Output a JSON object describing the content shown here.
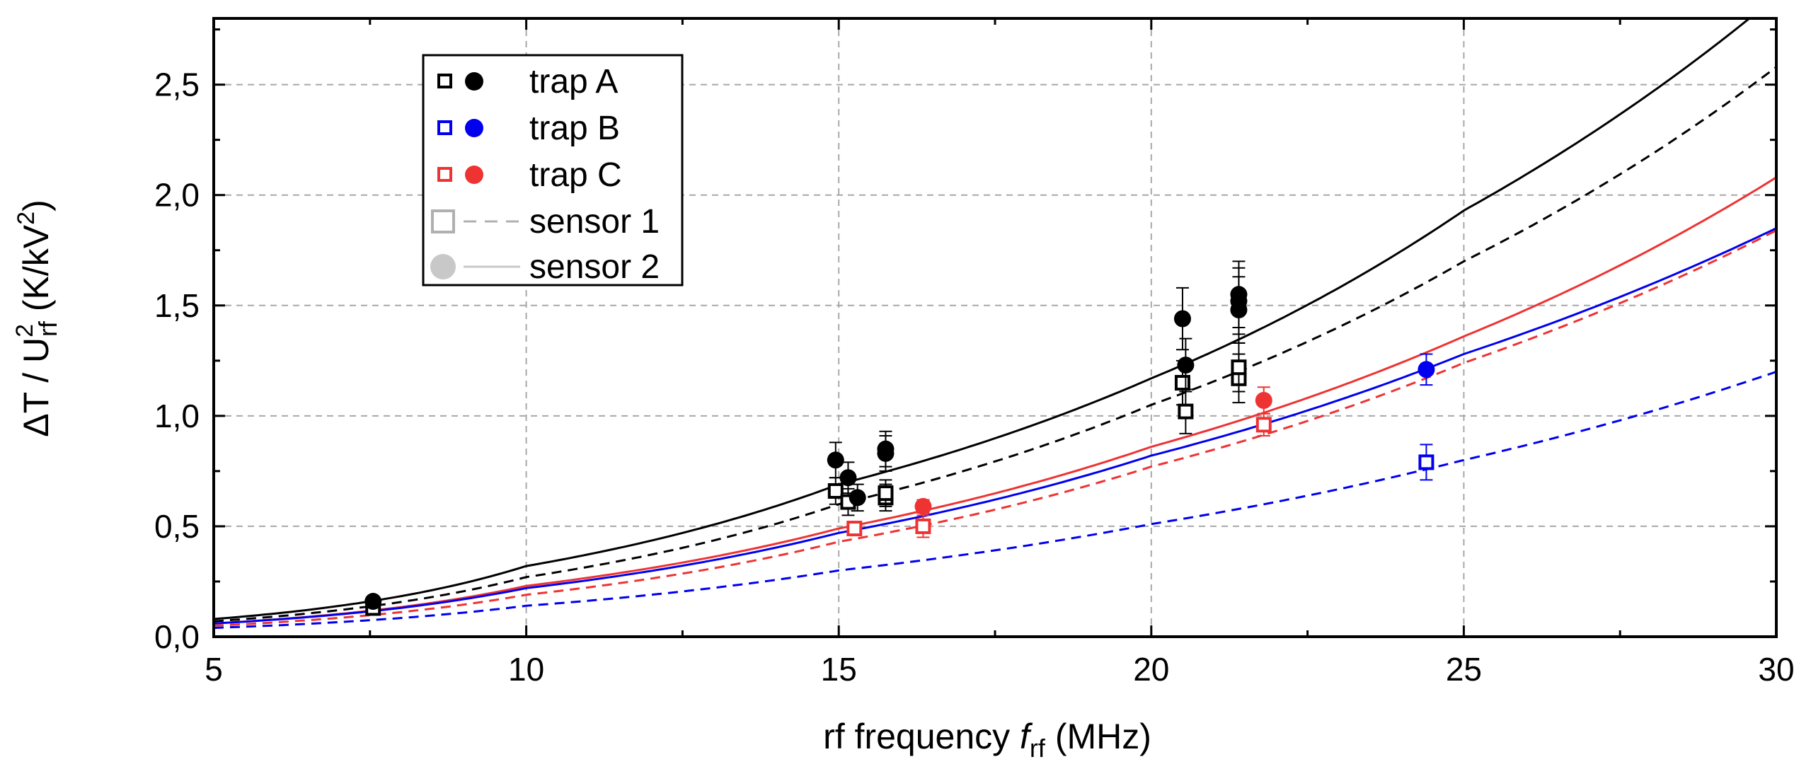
{
  "chart_data": {
    "type": "scatter",
    "xlabel": {
      "prefix": "rf frequency ",
      "symbol": "f",
      "subscript": "rf",
      "unit": " (MHz)"
    },
    "ylabel": {
      "prefix": "ΔT / U",
      "subscript": "rf",
      "superscript": "2",
      "unit": " (K/kV",
      "unit_superscript": "2",
      "unit_suffix": ")"
    },
    "xlim": [
      5,
      30
    ],
    "ylim": [
      0,
      2.8
    ],
    "xticks": [
      {
        "value": 5,
        "label": "5"
      },
      {
        "value": 10,
        "label": "10"
      },
      {
        "value": 15,
        "label": "15"
      },
      {
        "value": 20,
        "label": "20"
      },
      {
        "value": 25,
        "label": "25"
      },
      {
        "value": 30,
        "label": "30"
      }
    ],
    "yticks": [
      {
        "value": 0,
        "label": "0,0"
      },
      {
        "value": 0.5,
        "label": "0,5"
      },
      {
        "value": 1.0,
        "label": "1,0"
      },
      {
        "value": 1.5,
        "label": "1,5"
      },
      {
        "value": 2.0,
        "label": "2,0"
      },
      {
        "value": 2.5,
        "label": "2,5"
      }
    ],
    "grid": true,
    "legend_position": "top-left",
    "legend": [
      {
        "label": "trap A",
        "color": "#000000",
        "kind": "trap"
      },
      {
        "label": "trap B",
        "color": "#0000ee",
        "kind": "trap"
      },
      {
        "label": "trap C",
        "color": "#ee3333",
        "kind": "trap"
      },
      {
        "label": "sensor 1",
        "color": "#b0b0b0",
        "kind": "sensor1"
      },
      {
        "label": "sensor 2",
        "color": "#c8c8c8",
        "kind": "sensor2"
      }
    ],
    "series": [
      {
        "name": "trap A sensor 1",
        "trap": "A",
        "sensor": 1,
        "marker": "square",
        "color": "#000000",
        "points": [
          {
            "x": 7.55,
            "y": 0.13,
            "err": 0.02
          },
          {
            "x": 14.95,
            "y": 0.66,
            "err": 0.06
          },
          {
            "x": 15.15,
            "y": 0.61,
            "err": 0.06
          },
          {
            "x": 15.75,
            "y": 0.63,
            "err": 0.06
          },
          {
            "x": 15.75,
            "y": 0.65,
            "err": 0.06
          },
          {
            "x": 20.5,
            "y": 1.15,
            "err": 0.1
          },
          {
            "x": 20.55,
            "y": 1.02,
            "err": 0.1
          },
          {
            "x": 21.4,
            "y": 1.17,
            "err": 0.11
          },
          {
            "x": 21.4,
            "y": 1.22,
            "err": 0.11
          }
        ]
      },
      {
        "name": "trap A sensor 2",
        "trap": "A",
        "sensor": 2,
        "marker": "circle",
        "color": "#000000",
        "points": [
          {
            "x": 7.55,
            "y": 0.16,
            "err": 0.02
          },
          {
            "x": 14.95,
            "y": 0.8,
            "err": 0.08
          },
          {
            "x": 15.15,
            "y": 0.72,
            "err": 0.07
          },
          {
            "x": 15.3,
            "y": 0.63,
            "err": 0.06
          },
          {
            "x": 15.75,
            "y": 0.83,
            "err": 0.08
          },
          {
            "x": 15.75,
            "y": 0.85,
            "err": 0.08
          },
          {
            "x": 20.5,
            "y": 1.44,
            "err": 0.14
          },
          {
            "x": 20.55,
            "y": 1.23,
            "err": 0.12
          },
          {
            "x": 21.4,
            "y": 1.48,
            "err": 0.15
          },
          {
            "x": 21.4,
            "y": 1.52,
            "err": 0.15
          },
          {
            "x": 21.4,
            "y": 1.55,
            "err": 0.15
          }
        ]
      },
      {
        "name": "trap B sensor 1",
        "trap": "B",
        "sensor": 1,
        "marker": "square",
        "color": "#0000ee",
        "points": [
          {
            "x": 24.4,
            "y": 0.79,
            "err": 0.08
          }
        ]
      },
      {
        "name": "trap B sensor 2",
        "trap": "B",
        "sensor": 2,
        "marker": "circle",
        "color": "#0000ee",
        "points": [
          {
            "x": 24.4,
            "y": 1.21,
            "err": 0.07
          }
        ]
      },
      {
        "name": "trap C sensor 1",
        "trap": "C",
        "sensor": 1,
        "marker": "square",
        "color": "#ee3333",
        "points": [
          {
            "x": 15.25,
            "y": 0.49,
            "err": 0.03
          },
          {
            "x": 16.35,
            "y": 0.5,
            "err": 0.05
          },
          {
            "x": 21.8,
            "y": 0.96,
            "err": 0.05
          }
        ]
      },
      {
        "name": "trap C sensor 2",
        "trap": "C",
        "sensor": 2,
        "marker": "circle",
        "color": "#ee3333",
        "points": [
          {
            "x": 16.35,
            "y": 0.59,
            "err": 0.03
          },
          {
            "x": 21.8,
            "y": 1.07,
            "err": 0.06
          }
        ]
      }
    ],
    "fits": [
      {
        "name": "trap A sensor 2 fit",
        "color": "#000000",
        "style": "solid",
        "x": [
          5,
          10,
          15,
          20,
          25,
          30
        ],
        "y": [
          0.08,
          0.32,
          0.69,
          1.17,
          1.93,
          2.9
        ]
      },
      {
        "name": "trap A sensor 1 fit",
        "color": "#000000",
        "style": "dashed",
        "x": [
          5,
          10,
          15,
          20,
          25,
          30
        ],
        "y": [
          0.07,
          0.27,
          0.6,
          1.05,
          1.7,
          2.58
        ]
      },
      {
        "name": "trap C sensor 2 fit",
        "color": "#ee3333",
        "style": "solid",
        "x": [
          5,
          10,
          15,
          20,
          25,
          30
        ],
        "y": [
          0.06,
          0.23,
          0.49,
          0.86,
          1.36,
          2.08
        ]
      },
      {
        "name": "trap B sensor 2 fit",
        "color": "#0000ee",
        "style": "solid",
        "x": [
          5,
          10,
          15,
          20,
          25,
          30
        ],
        "y": [
          0.06,
          0.22,
          0.47,
          0.82,
          1.28,
          1.85
        ]
      },
      {
        "name": "trap C sensor 1 fit",
        "color": "#ee3333",
        "style": "dashed",
        "x": [
          5,
          10,
          15,
          20,
          25,
          30
        ],
        "y": [
          0.05,
          0.19,
          0.43,
          0.77,
          1.24,
          1.84
        ]
      },
      {
        "name": "trap B sensor 1 fit",
        "color": "#0000ee",
        "style": "dashed",
        "x": [
          5,
          10,
          15,
          20,
          25,
          30
        ],
        "y": [
          0.04,
          0.14,
          0.3,
          0.51,
          0.8,
          1.2
        ]
      }
    ]
  }
}
